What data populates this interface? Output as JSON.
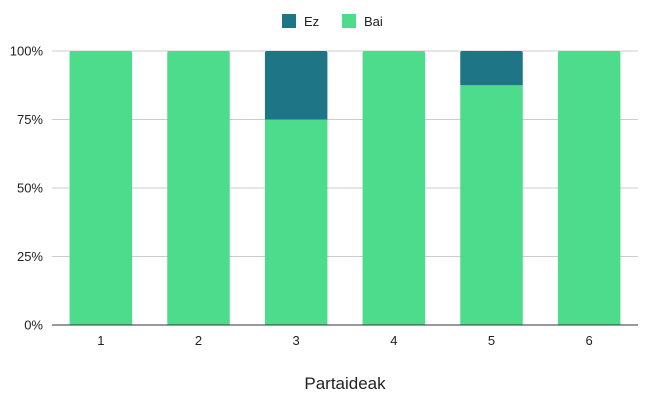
{
  "chart_data": {
    "type": "bar",
    "stacked": true,
    "normalized_percent": true,
    "categories": [
      "1",
      "2",
      "3",
      "4",
      "5",
      "6"
    ],
    "series": [
      {
        "name": "Bai",
        "color": "#4ddb8c",
        "values": [
          100,
          100,
          75,
          100,
          87.5,
          100
        ]
      },
      {
        "name": "Ez",
        "color": "#1d7585",
        "values": [
          0,
          0,
          25,
          0,
          12.5,
          0
        ]
      }
    ],
    "legend_order": [
      "Ez",
      "Bai"
    ],
    "legend_position": "top-center",
    "xlabel": "Partaideak",
    "ylabel": "",
    "ylim": [
      0,
      100
    ],
    "yticks": [
      {
        "value": 0,
        "label": "0%"
      },
      {
        "value": 25,
        "label": "25%"
      },
      {
        "value": 50,
        "label": "50%"
      },
      {
        "value": 75,
        "label": "75%"
      },
      {
        "value": 100,
        "label": "100%"
      }
    ],
    "grid": true,
    "gridline_color": "#cccccc",
    "axis_color": "#333333"
  }
}
